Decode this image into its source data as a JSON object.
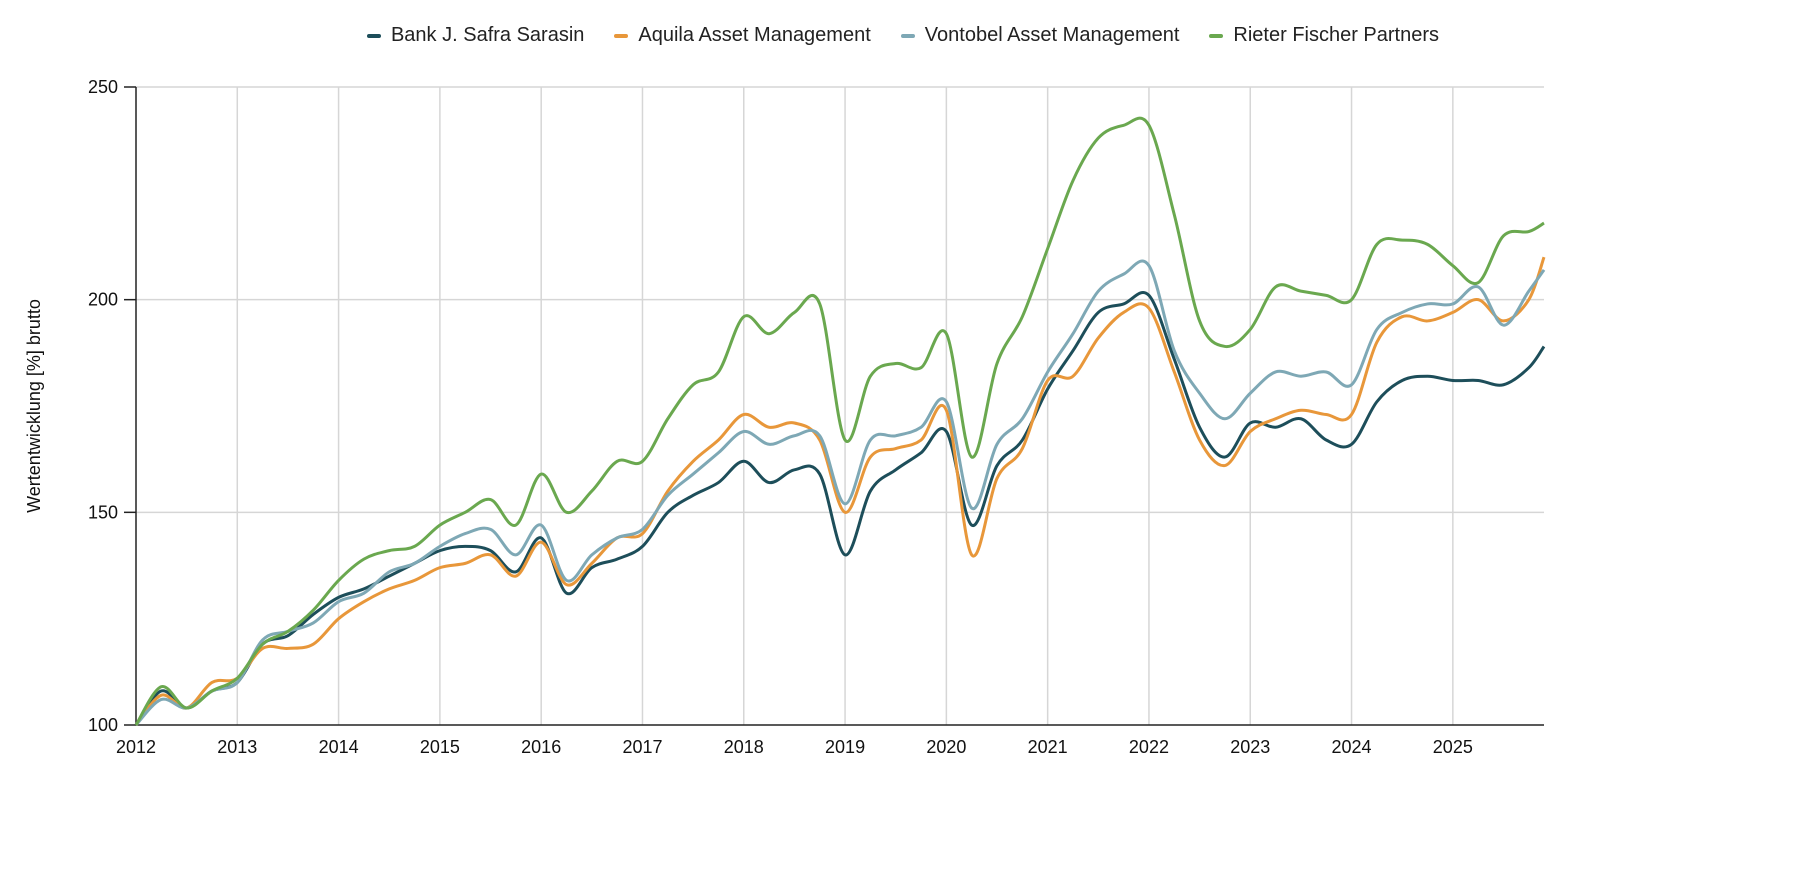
{
  "chart_data": {
    "type": "line",
    "title": "",
    "xlabel": "",
    "ylabel": "Wertentwicklung [%] brutto",
    "xlim": [
      2012,
      2025.9
    ],
    "ylim": [
      100,
      250
    ],
    "xticks": [
      "2012",
      "2013",
      "2014",
      "2015",
      "2016",
      "2017",
      "2018",
      "2019",
      "2020",
      "2021",
      "2022",
      "2023",
      "2024",
      "2025"
    ],
    "yticks": [
      "100",
      "150",
      "200",
      "250"
    ],
    "grid": true,
    "legend_position": "top",
    "x": [
      2012,
      2012.25,
      2012.5,
      2012.75,
      2013,
      2013.25,
      2013.5,
      2013.75,
      2014,
      2014.25,
      2014.5,
      2014.75,
      2015,
      2015.25,
      2015.5,
      2015.75,
      2016,
      2016.25,
      2016.5,
      2016.75,
      2017,
      2017.25,
      2017.5,
      2017.75,
      2018,
      2018.25,
      2018.5,
      2018.75,
      2019,
      2019.25,
      2019.5,
      2019.75,
      2020,
      2020.25,
      2020.5,
      2020.75,
      2021,
      2021.25,
      2021.5,
      2021.75,
      2022,
      2022.25,
      2022.5,
      2022.75,
      2023,
      2023.25,
      2023.5,
      2023.75,
      2024,
      2024.25,
      2024.5,
      2024.75,
      2025,
      2025.25,
      2025.5,
      2025.75,
      2025.9
    ],
    "series": [
      {
        "name": "Bank J. Safra Sarasin",
        "color": "#1d4e5a",
        "values": [
          100,
          108,
          104,
          108,
          110,
          119,
          121,
          126,
          130,
          132,
          135,
          138,
          141,
          142,
          141,
          136,
          144,
          131,
          137,
          139,
          142,
          150,
          154,
          157,
          162,
          157,
          160,
          159,
          140,
          155,
          160,
          164,
          169,
          147,
          161,
          167,
          179,
          188,
          197,
          199,
          201,
          186,
          170,
          163,
          171,
          170,
          172,
          167,
          166,
          176,
          181,
          182,
          181,
          181,
          180,
          184,
          189
        ]
      },
      {
        "name": "Aquila Asset Management",
        "color": "#e8973a",
        "values": [
          100,
          107,
          104,
          110,
          111,
          118,
          118,
          119,
          125,
          129,
          132,
          134,
          137,
          138,
          140,
          135,
          143,
          133,
          138,
          144,
          145,
          155,
          162,
          167,
          173,
          170,
          171,
          167,
          150,
          163,
          165,
          167,
          174,
          140,
          158,
          165,
          181,
          182,
          191,
          197,
          198,
          183,
          167,
          161,
          169,
          172,
          174,
          173,
          173,
          190,
          196,
          195,
          197,
          200,
          195,
          200,
          210
        ]
      },
      {
        "name": "Vontobel Asset Management",
        "color": "#7ea8b5",
        "values": [
          100,
          106,
          104,
          108,
          110,
          120,
          122,
          124,
          129,
          131,
          136,
          138,
          142,
          145,
          146,
          140,
          147,
          134,
          140,
          144,
          146,
          154,
          159,
          164,
          169,
          166,
          168,
          168,
          152,
          167,
          168,
          170,
          176,
          151,
          166,
          172,
          183,
          192,
          202,
          206,
          208,
          188,
          178,
          172,
          178,
          183,
          182,
          183,
          180,
          193,
          197,
          199,
          199,
          203,
          194,
          202,
          207
        ]
      },
      {
        "name": "Rieter Fischer Partners",
        "color": "#6aa84f",
        "values": [
          100,
          109,
          104,
          108,
          111,
          119,
          122,
          127,
          134,
          139,
          141,
          142,
          147,
          150,
          153,
          147,
          159,
          150,
          155,
          162,
          162,
          172,
          180,
          183,
          196,
          192,
          197,
          199,
          167,
          182,
          185,
          184,
          192,
          163,
          185,
          196,
          212,
          228,
          238,
          241,
          241,
          220,
          195,
          189,
          193,
          203,
          202,
          201,
          200,
          213,
          214,
          213,
          208,
          204,
          215,
          216,
          218
        ]
      }
    ]
  }
}
